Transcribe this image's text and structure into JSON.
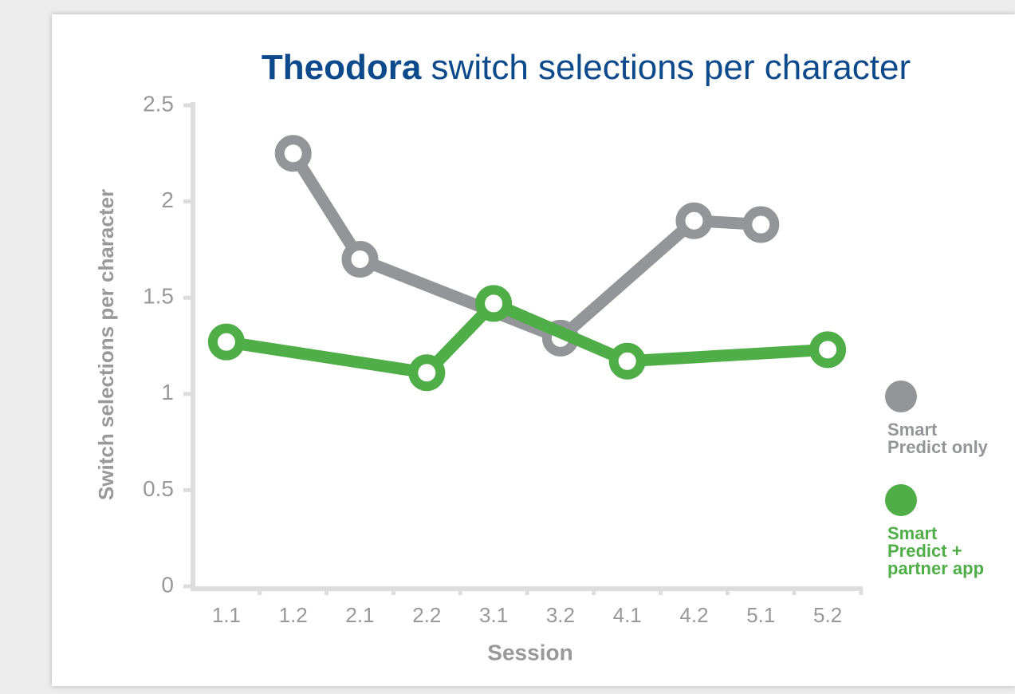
{
  "chart_data": {
    "type": "line",
    "title": [
      "Theodora",
      "switch selections per character"
    ],
    "title_color": "#0d4a8c",
    "x_label": "Session",
    "y_label": "Switch selections per character",
    "categories": [
      "1.1",
      "1.2",
      "2.1",
      "2.2",
      "3.1",
      "3.2",
      "4.1",
      "4.2",
      "5.1",
      "5.2"
    ],
    "series": [
      {
        "name": "Smart\nPredict only",
        "color": "#939598",
        "values": [
          null,
          2.25,
          1.7,
          null,
          null,
          1.29,
          null,
          1.9,
          1.88,
          null
        ]
      },
      {
        "name": "Smart\nPredict +\npartner app",
        "color": "#4fae47",
        "values": [
          1.27,
          null,
          null,
          1.11,
          1.47,
          null,
          1.17,
          null,
          null,
          1.23
        ]
      }
    ],
    "connect_gaps": true,
    "ylim": [
      0,
      2.5
    ],
    "yticks": [
      0,
      0.5,
      1,
      1.5,
      2,
      2.5
    ],
    "legend": "right"
  }
}
